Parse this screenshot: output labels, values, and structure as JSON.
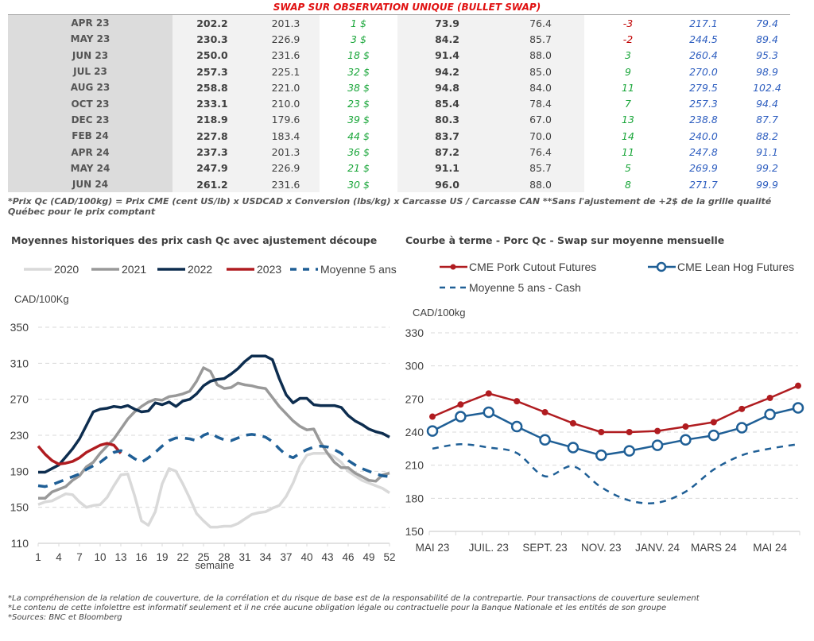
{
  "header": {
    "title": "SWAP SUR OBSERVATION UNIQUE (BULLET SWAP)"
  },
  "table": {
    "rows": [
      {
        "month": "APR 23",
        "c1": "202.2",
        "c2": "201.3",
        "diff": "1 $",
        "c4": "73.9",
        "c5": "76.4",
        "d2": "-3",
        "c7": "217.1",
        "c8": "79.4"
      },
      {
        "month": "MAY 23",
        "c1": "230.3",
        "c2": "226.9",
        "diff": "3 $",
        "c4": "84.2",
        "c5": "85.7",
        "d2": "-2",
        "c7": "244.5",
        "c8": "89.4"
      },
      {
        "month": "JUN 23",
        "c1": "250.0",
        "c2": "231.6",
        "diff": "18 $",
        "c4": "91.4",
        "c5": "88.0",
        "d2": "3",
        "c7": "260.4",
        "c8": "95.3"
      },
      {
        "month": "JUL 23",
        "c1": "257.3",
        "c2": "225.1",
        "diff": "32 $",
        "c4": "94.2",
        "c5": "85.0",
        "d2": "9",
        "c7": "270.0",
        "c8": "98.9"
      },
      {
        "month": "AUG 23",
        "c1": "258.8",
        "c2": "221.0",
        "diff": "38 $",
        "c4": "94.8",
        "c5": "84.0",
        "d2": "11",
        "c7": "279.5",
        "c8": "102.4"
      },
      {
        "month": "OCT 23",
        "c1": "233.1",
        "c2": "210.0",
        "diff": "23 $",
        "c4": "85.4",
        "c5": "78.4",
        "d2": "7",
        "c7": "257.3",
        "c8": "94.4"
      },
      {
        "month": "DEC 23",
        "c1": "218.9",
        "c2": "179.6",
        "diff": "39 $",
        "c4": "80.3",
        "c5": "67.0",
        "d2": "13",
        "c7": "238.8",
        "c8": "87.7"
      },
      {
        "month": "FEB 24",
        "c1": "227.8",
        "c2": "183.4",
        "diff": "44 $",
        "c4": "83.7",
        "c5": "70.0",
        "d2": "14",
        "c7": "240.0",
        "c8": "88.2"
      },
      {
        "month": "APR 24",
        "c1": "237.3",
        "c2": "201.3",
        "diff": "36 $",
        "c4": "87.2",
        "c5": "76.4",
        "d2": "11",
        "c7": "247.8",
        "c8": "91.1"
      },
      {
        "month": "MAY 24",
        "c1": "247.9",
        "c2": "226.9",
        "diff": "21 $",
        "c4": "91.1",
        "c5": "85.7",
        "d2": "5",
        "c7": "269.9",
        "c8": "99.2"
      },
      {
        "month": "JUN 24",
        "c1": "261.2",
        "c2": "231.6",
        "diff": "30 $",
        "c4": "96.0",
        "c5": "88.0",
        "d2": "8",
        "c7": "271.7",
        "c8": "99.9"
      }
    ],
    "note": "*Prix Qc (CAD/100kg) = Prix CME (cent US/lb) x USDCAD x Conversion (lbs/kg) x Carcasse US / Carcasse CAN **Sans l'ajustement de +2$ de la grille qualité Québec pour le prix comptant"
  },
  "colors": {
    "pos": "#1aa63a",
    "neg": "#c00000",
    "blue": "#2f5fc0",
    "title": "#e01010"
  },
  "chart_data": [
    {
      "type": "line",
      "title": "Moyennes historiques des prix cash Qc avec ajustement découpe",
      "ylabel": "CAD/100Kg",
      "xlabel": "semaine",
      "ylim": [
        110,
        350
      ],
      "yticks": [
        110,
        150,
        190,
        230,
        270,
        310,
        350
      ],
      "xlim": [
        1,
        52
      ],
      "xticks": [
        1,
        4,
        7,
        10,
        13,
        16,
        19,
        22,
        25,
        28,
        31,
        34,
        37,
        40,
        43,
        46,
        49,
        52
      ],
      "grid": true,
      "legend": "top",
      "series": [
        {
          "name": "2020",
          "color": "#d9d9d9",
          "dash": false,
          "x": [
            1,
            2,
            3,
            4,
            5,
            6,
            7,
            8,
            9,
            10,
            11,
            12,
            13,
            14,
            15,
            16,
            17,
            18,
            19,
            20,
            21,
            22,
            23,
            24,
            25,
            26,
            27,
            28,
            29,
            30,
            31,
            32,
            33,
            34,
            35,
            36,
            37,
            38,
            39,
            40,
            41,
            42,
            43,
            44,
            45,
            46,
            47,
            48,
            49,
            50,
            51,
            52
          ],
          "y": [
            153,
            156,
            157,
            161,
            165,
            164,
            156,
            150,
            152,
            153,
            161,
            174,
            186,
            187,
            163,
            135,
            130,
            145,
            176,
            193,
            190,
            176,
            160,
            143,
            135,
            128,
            128,
            129,
            129,
            132,
            137,
            142,
            144,
            145,
            149,
            152,
            162,
            177,
            196,
            208,
            210,
            210,
            210,
            206,
            200,
            190,
            185,
            180,
            177,
            174,
            171,
            166
          ]
        },
        {
          "name": "2021",
          "color": "#999999",
          "dash": false,
          "x": [
            1,
            2,
            3,
            4,
            5,
            6,
            7,
            8,
            9,
            10,
            11,
            12,
            13,
            14,
            15,
            16,
            17,
            18,
            19,
            20,
            21,
            22,
            23,
            24,
            25,
            26,
            27,
            28,
            29,
            30,
            31,
            32,
            33,
            34,
            35,
            36,
            37,
            38,
            39,
            40,
            41,
            42,
            43,
            44,
            45,
            46,
            47,
            48,
            49,
            50,
            51,
            52
          ],
          "y": [
            160,
            160,
            167,
            170,
            173,
            180,
            185,
            195,
            200,
            210,
            218,
            226,
            237,
            248,
            256,
            262,
            267,
            270,
            269,
            273,
            274,
            276,
            279,
            290,
            305,
            301,
            286,
            282,
            283,
            288,
            286,
            285,
            283,
            282,
            272,
            262,
            254,
            246,
            240,
            236,
            237,
            222,
            210,
            200,
            194,
            194,
            188,
            184,
            180,
            179,
            186,
            188
          ]
        },
        {
          "name": "2022",
          "color": "#0d2d4f",
          "dash": false,
          "x": [
            1,
            2,
            3,
            4,
            5,
            6,
            7,
            8,
            9,
            10,
            11,
            12,
            13,
            14,
            15,
            16,
            17,
            18,
            19,
            20,
            21,
            22,
            23,
            24,
            25,
            26,
            27,
            28,
            29,
            30,
            31,
            32,
            33,
            34,
            35,
            36,
            37,
            38,
            39,
            40,
            41,
            42,
            43,
            44,
            45,
            46,
            47,
            48,
            49,
            50,
            51,
            52
          ],
          "y": [
            189,
            189,
            193,
            197,
            206,
            215,
            226,
            241,
            256,
            259,
            260,
            262,
            261,
            263,
            259,
            256,
            257,
            266,
            264,
            267,
            262,
            268,
            270,
            276,
            285,
            290,
            292,
            293,
            298,
            304,
            312,
            318,
            318,
            318,
            314,
            293,
            275,
            266,
            271,
            271,
            264,
            263,
            263,
            263,
            261,
            252,
            246,
            242,
            237,
            234,
            232,
            228
          ]
        },
        {
          "name": "2023",
          "color": "#b01c20",
          "dash": false,
          "x": [
            1,
            2,
            3,
            4,
            5,
            6,
            7,
            8,
            9,
            10,
            11,
            12,
            13
          ],
          "y": [
            218,
            209,
            202,
            198,
            199,
            201,
            205,
            211,
            215,
            219,
            221,
            219,
            210
          ]
        },
        {
          "name": "Moyenne 5 ans",
          "color": "#1f5f96",
          "dash": true,
          "x": [
            1,
            2,
            3,
            4,
            5,
            6,
            7,
            8,
            9,
            10,
            11,
            12,
            13,
            14,
            15,
            16,
            17,
            18,
            19,
            20,
            21,
            22,
            23,
            24,
            25,
            26,
            27,
            28,
            29,
            30,
            31,
            32,
            33,
            34,
            35,
            36,
            37,
            38,
            39,
            40,
            41,
            42,
            43,
            44,
            45,
            46,
            47,
            48,
            49,
            50,
            51,
            52
          ],
          "y": [
            174,
            173,
            175,
            178,
            181,
            184,
            187,
            192,
            196,
            200,
            206,
            211,
            213,
            209,
            204,
            200,
            205,
            211,
            218,
            224,
            227,
            227,
            226,
            224,
            230,
            233,
            228,
            225,
            224,
            227,
            230,
            231,
            230,
            228,
            223,
            215,
            208,
            205,
            210,
            214,
            217,
            218,
            217,
            214,
            210,
            202,
            197,
            193,
            190,
            187,
            185,
            184
          ]
        }
      ]
    },
    {
      "type": "line",
      "title": "Courbe à terme - Porc Qc - Swap sur moyenne mensuelle",
      "ylabel": "CAD/100kg",
      "ylim": [
        150,
        330
      ],
      "yticks": [
        150,
        180,
        210,
        240,
        270,
        300,
        330
      ],
      "categories": [
        "MAI 23",
        "JUIN 23",
        "JUIL. 23",
        "AOÛT 23",
        "SEPT. 23",
        "OCT. 23",
        "NOV. 23",
        "DÉC. 23",
        "JANV. 24",
        "FÉVR. 24",
        "MARS 24",
        "AVR. 24",
        "MAI 24",
        "JUIN 24"
      ],
      "xtick_labels": [
        "MAI 23",
        "",
        "JUIL. 23",
        "",
        "SEPT. 23",
        "",
        "NOV. 23",
        "",
        "JANV. 24",
        "",
        "MARS 24",
        "",
        "MAI 24",
        ""
      ],
      "grid": true,
      "legend": "top",
      "series": [
        {
          "name": "CME Pork Cutout Futures",
          "color": "#b01c20",
          "marker": "filled-circle",
          "dash": false,
          "values": [
            254,
            265,
            275,
            268,
            258,
            248,
            240,
            240,
            241,
            245,
            249,
            261,
            271,
            282
          ]
        },
        {
          "name": "CME Lean Hog Futures",
          "color": "#1f5f96",
          "marker": "open-circle",
          "dash": false,
          "values": [
            241,
            254,
            258,
            245,
            233,
            226,
            219,
            223,
            228,
            233,
            237,
            244,
            256,
            262
          ]
        },
        {
          "name": "Moyenne 5 ans - Cash",
          "color": "#1f5f96",
          "marker": "none",
          "dash": true,
          "values": [
            225,
            229,
            226,
            221,
            200,
            209,
            190,
            178,
            176,
            186,
            206,
            219,
            225,
            229
          ]
        }
      ]
    }
  ],
  "footer": {
    "lines": [
      "*La compréhension de la relation de couverture, de la corrélation et du risque de base est de la responsabilité de la contrepartie. Pour transactions de couverture seulement",
      "*Le contenu de cette infolettre est informatif seulement et il ne crée aucune obligation légale ou contractuelle pour la Banque Nationale et les entités de son groupe",
      "*Sources: BNC et Bloomberg"
    ]
  }
}
